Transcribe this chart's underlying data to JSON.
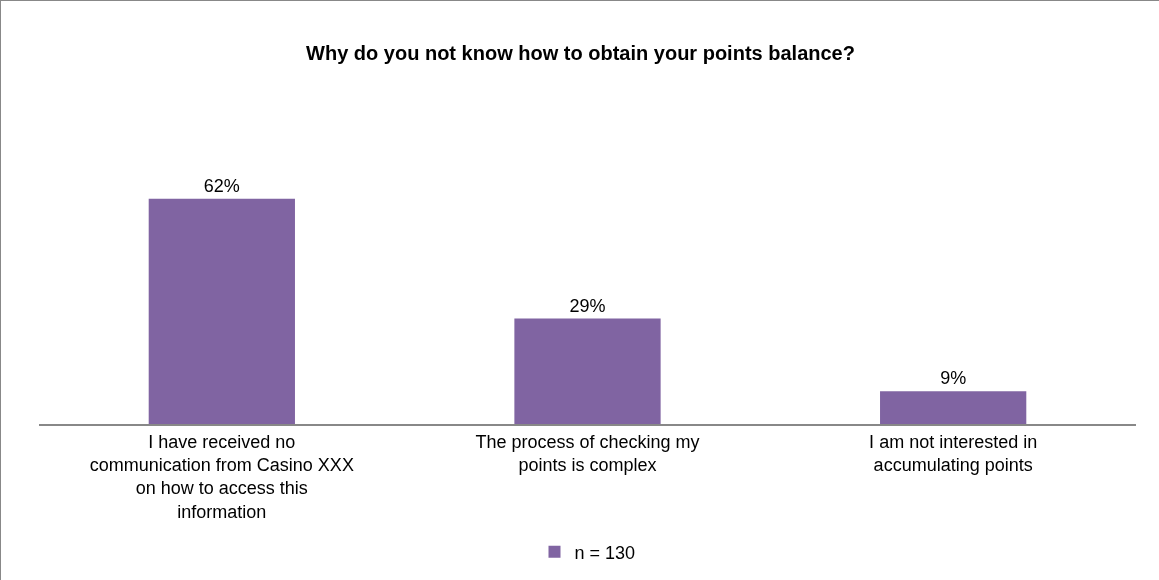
{
  "chart_data": {
    "type": "bar",
    "title": "Why do you not know how to obtain your points balance?",
    "categories": [
      "I have received no communication from Casino XXX on how to access this information",
      "The process of checking my points is complex",
      "I am not interested in accumulating points"
    ],
    "series": [
      {
        "name": "n = 130",
        "color": "#8064a2",
        "values": [
          62,
          29,
          9
        ],
        "value_labels": [
          "62%",
          "29%",
          "9%"
        ]
      }
    ],
    "legend": "bottom"
  }
}
